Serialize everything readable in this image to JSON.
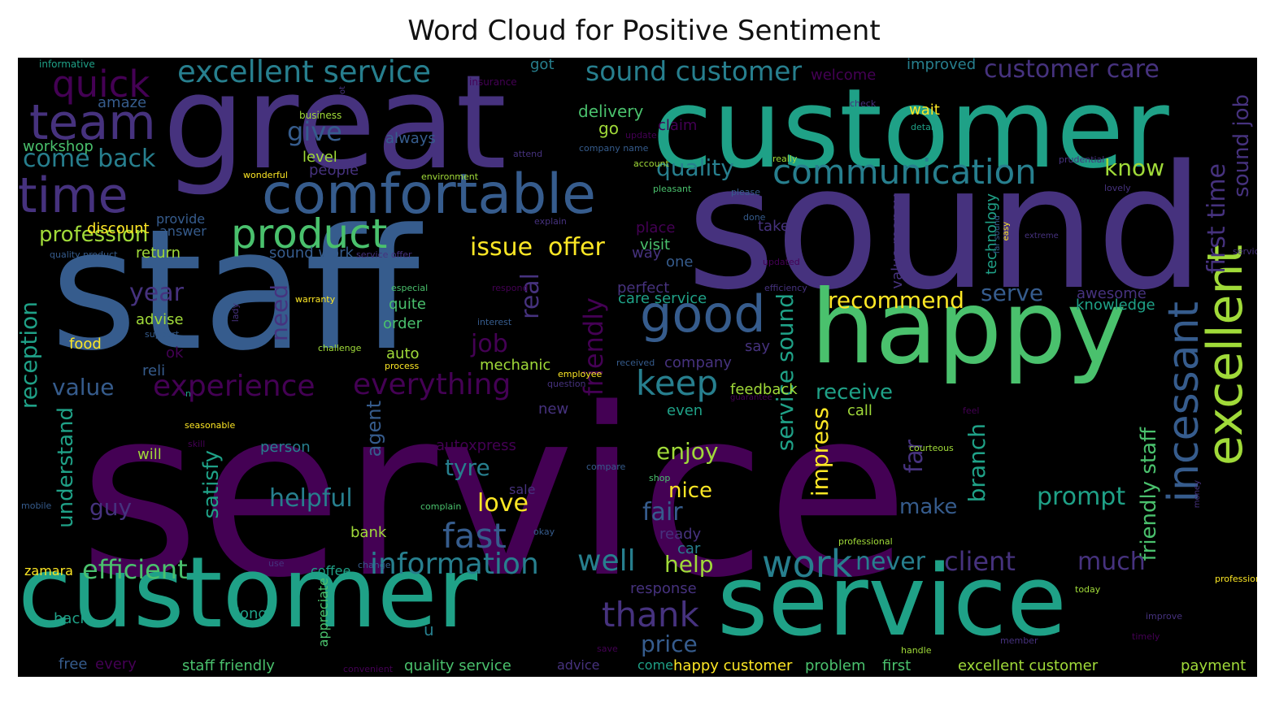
{
  "title": "Word Cloud for Positive Sentiment",
  "palette": {
    "purple": "#440154",
    "indigo": "#46327e",
    "slate": "#365c8d",
    "blue": "#277f8e",
    "teal": "#1fa187",
    "green": "#4ac16d",
    "lime": "#a0da39",
    "yellow": "#fde725"
  },
  "words": [
    {
      "text": "service",
      "color": "purple"
    },
    {
      "text": "staff",
      "color": "slate"
    },
    {
      "text": "sound",
      "color": "indigo"
    },
    {
      "text": "great",
      "color": "indigo"
    },
    {
      "text": "customer",
      "color": "teal"
    },
    {
      "text": "customer",
      "color": "teal"
    },
    {
      "text": "service",
      "color": "teal"
    },
    {
      "text": "happy",
      "color": "green"
    },
    {
      "text": "comfortable",
      "color": "slate"
    },
    {
      "text": "good",
      "color": "slate"
    },
    {
      "text": "time",
      "color": "indigo"
    },
    {
      "text": "team",
      "color": "indigo"
    },
    {
      "text": "quick",
      "color": "purple"
    },
    {
      "text": "excellent service",
      "color": "blue"
    },
    {
      "text": "sound customer",
      "color": "blue"
    },
    {
      "text": "customer care",
      "color": "indigo"
    },
    {
      "text": "communication",
      "color": "blue"
    },
    {
      "text": "product",
      "color": "green"
    },
    {
      "text": "excellent",
      "color": "lime"
    },
    {
      "text": "incessant",
      "color": "slate"
    },
    {
      "text": "first time",
      "color": "indigo"
    },
    {
      "text": "sound job",
      "color": "indigo"
    },
    {
      "text": "friendly staff",
      "color": "green"
    },
    {
      "text": "information",
      "color": "blue"
    },
    {
      "text": "experience",
      "color": "purple"
    },
    {
      "text": "everything",
      "color": "purple"
    },
    {
      "text": "keep",
      "color": "blue"
    },
    {
      "text": "work",
      "color": "blue"
    },
    {
      "text": "well",
      "color": "blue"
    },
    {
      "text": "fast",
      "color": "slate"
    },
    {
      "text": "thank",
      "color": "indigo"
    },
    {
      "text": "client",
      "color": "indigo"
    },
    {
      "text": "much",
      "color": "indigo"
    },
    {
      "text": "never",
      "color": "blue"
    },
    {
      "text": "efficient",
      "color": "green"
    },
    {
      "text": "helpful",
      "color": "blue"
    },
    {
      "text": "come back",
      "color": "blue"
    },
    {
      "text": "profession",
      "color": "lime"
    },
    {
      "text": "quality",
      "color": "blue"
    },
    {
      "text": "know",
      "color": "lime"
    },
    {
      "text": "give",
      "color": "slate"
    },
    {
      "text": "issue",
      "color": "yellow"
    },
    {
      "text": "offer",
      "color": "yellow"
    },
    {
      "text": "recommend",
      "color": "yellow"
    },
    {
      "text": "serve",
      "color": "slate"
    },
    {
      "text": "receive",
      "color": "teal"
    },
    {
      "text": "year",
      "color": "indigo"
    },
    {
      "text": "job",
      "color": "purple"
    },
    {
      "text": "real",
      "color": "indigo"
    },
    {
      "text": "friendly",
      "color": "purple"
    },
    {
      "text": "service sound",
      "color": "teal"
    },
    {
      "text": "impress",
      "color": "yellow"
    },
    {
      "text": "reception",
      "color": "teal"
    },
    {
      "text": "understand",
      "color": "teal"
    },
    {
      "text": "value",
      "color": "slate"
    },
    {
      "text": "enjoy",
      "color": "lime"
    },
    {
      "text": "tyre",
      "color": "blue"
    },
    {
      "text": "love",
      "color": "yellow"
    },
    {
      "text": "nice",
      "color": "yellow"
    },
    {
      "text": "fair",
      "color": "slate"
    },
    {
      "text": "guy",
      "color": "indigo"
    },
    {
      "text": "satisfy",
      "color": "teal"
    },
    {
      "text": "agent",
      "color": "slate"
    },
    {
      "text": "make",
      "color": "slate"
    },
    {
      "text": "prompt",
      "color": "teal"
    },
    {
      "text": "branch",
      "color": "teal"
    },
    {
      "text": "far",
      "color": "indigo"
    },
    {
      "text": "help",
      "color": "lime"
    },
    {
      "text": "price",
      "color": "slate"
    },
    {
      "text": "need",
      "color": "indigo"
    },
    {
      "text": "advise",
      "color": "lime"
    },
    {
      "text": "food",
      "color": "yellow"
    },
    {
      "text": "auto",
      "color": "lime"
    },
    {
      "text": "mechanic",
      "color": "lime"
    },
    {
      "text": "discount",
      "color": "yellow"
    },
    {
      "text": "workshop",
      "color": "green"
    },
    {
      "text": "provide",
      "color": "slate"
    },
    {
      "text": "answer",
      "color": "slate"
    },
    {
      "text": "return",
      "color": "lime"
    },
    {
      "text": "sound work",
      "color": "slate"
    },
    {
      "text": "quite",
      "color": "green"
    },
    {
      "text": "order",
      "color": "green"
    },
    {
      "text": "delivery",
      "color": "green"
    },
    {
      "text": "always",
      "color": "slate"
    },
    {
      "text": "level",
      "color": "lime"
    },
    {
      "text": "people",
      "color": "indigo"
    },
    {
      "text": "amaze",
      "color": "slate"
    },
    {
      "text": "got",
      "color": "blue"
    },
    {
      "text": "go",
      "color": "lime"
    },
    {
      "text": "improved",
      "color": "blue"
    },
    {
      "text": "wait",
      "color": "yellow"
    },
    {
      "text": "claim",
      "color": "purple"
    },
    {
      "text": "welcome",
      "color": "purple"
    },
    {
      "text": "visit",
      "color": "green"
    },
    {
      "text": "place",
      "color": "purple"
    },
    {
      "text": "take",
      "color": "indigo"
    },
    {
      "text": "one",
      "color": "slate"
    },
    {
      "text": "way",
      "color": "indigo"
    },
    {
      "text": "perfect",
      "color": "indigo"
    },
    {
      "text": "care service",
      "color": "teal"
    },
    {
      "text": "company",
      "color": "indigo"
    },
    {
      "text": "say",
      "color": "indigo"
    },
    {
      "text": "knowledge",
      "color": "teal"
    },
    {
      "text": "awesome",
      "color": "indigo"
    },
    {
      "text": "value money",
      "color": "indigo"
    },
    {
      "text": "technology",
      "color": "teal"
    },
    {
      "text": "feedback",
      "color": "lime"
    },
    {
      "text": "call",
      "color": "lime"
    },
    {
      "text": "even",
      "color": "teal"
    },
    {
      "text": "new",
      "color": "indigo"
    },
    {
      "text": "autoxpress",
      "color": "purple"
    },
    {
      "text": "person",
      "color": "blue"
    },
    {
      "text": "will",
      "color": "lime"
    },
    {
      "text": "reli",
      "color": "slate"
    },
    {
      "text": "ok",
      "color": "purple"
    },
    {
      "text": "bank",
      "color": "lime"
    },
    {
      "text": "sale",
      "color": "indigo"
    },
    {
      "text": "ready",
      "color": "indigo"
    },
    {
      "text": "car",
      "color": "blue"
    },
    {
      "text": "coffee",
      "color": "teal"
    },
    {
      "text": "long",
      "color": "teal"
    },
    {
      "text": "back",
      "color": "teal"
    },
    {
      "text": "zamara",
      "color": "yellow"
    },
    {
      "text": "appreciate",
      "color": "green"
    },
    {
      "text": "response",
      "color": "indigo"
    },
    {
      "text": "free",
      "color": "slate"
    },
    {
      "text": "every",
      "color": "purple"
    },
    {
      "text": "staff friendly",
      "color": "green"
    },
    {
      "text": "quality service",
      "color": "green"
    },
    {
      "text": "advice",
      "color": "indigo"
    },
    {
      "text": "come",
      "color": "teal"
    },
    {
      "text": "happy customer",
      "color": "yellow"
    },
    {
      "text": "problem",
      "color": "green"
    },
    {
      "text": "first",
      "color": "green"
    },
    {
      "text": "excellent customer",
      "color": "lime"
    },
    {
      "text": "payment",
      "color": "lime"
    },
    {
      "text": "informative",
      "color": "teal"
    },
    {
      "text": "insurance",
      "color": "purple"
    },
    {
      "text": "business",
      "color": "lime"
    },
    {
      "text": "lot",
      "color": "indigo"
    },
    {
      "text": "check",
      "color": "indigo"
    },
    {
      "text": "detail",
      "color": "teal"
    },
    {
      "text": "update",
      "color": "purple"
    },
    {
      "text": "company name",
      "color": "slate"
    },
    {
      "text": "attend",
      "color": "indigo"
    },
    {
      "text": "account",
      "color": "lime"
    },
    {
      "text": "really",
      "color": "lime"
    },
    {
      "text": "prudential",
      "color": "indigo"
    },
    {
      "text": "environment",
      "color": "lime"
    },
    {
      "text": "wonderful",
      "color": "yellow"
    },
    {
      "text": "pleasant",
      "color": "green"
    },
    {
      "text": "please",
      "color": "slate"
    },
    {
      "text": "lovely",
      "color": "indigo"
    },
    {
      "text": "explain",
      "color": "indigo"
    },
    {
      "text": "done",
      "color": "slate"
    },
    {
      "text": "far sound",
      "color": "slate"
    },
    {
      "text": "extreme",
      "color": "indigo"
    },
    {
      "text": "easy",
      "color": "yellow"
    },
    {
      "text": "updated",
      "color": "purple"
    },
    {
      "text": "efficiency",
      "color": "indigo"
    },
    {
      "text": "especial",
      "color": "green"
    },
    {
      "text": "respond",
      "color": "purple"
    },
    {
      "text": "warranty",
      "color": "yellow"
    },
    {
      "text": "interest",
      "color": "slate"
    },
    {
      "text": "support",
      "color": "slate"
    },
    {
      "text": "lady",
      "color": "indigo"
    },
    {
      "text": "challenge",
      "color": "lime"
    },
    {
      "text": "process",
      "color": "yellow"
    },
    {
      "text": "employee",
      "color": "yellow"
    },
    {
      "text": "received",
      "color": "slate"
    },
    {
      "text": "question",
      "color": "indigo"
    },
    {
      "text": "guarantee",
      "color": "purple"
    },
    {
      "text": "feel",
      "color": "purple"
    },
    {
      "text": "seasonable",
      "color": "yellow"
    },
    {
      "text": "skill",
      "color": "purple"
    },
    {
      "text": "courteous",
      "color": "lime"
    },
    {
      "text": "compare",
      "color": "slate"
    },
    {
      "text": "shop",
      "color": "green"
    },
    {
      "text": "complain",
      "color": "green"
    },
    {
      "text": "okay",
      "color": "slate"
    },
    {
      "text": "professional",
      "color": "lime"
    },
    {
      "text": "mobile",
      "color": "slate"
    },
    {
      "text": "use",
      "color": "indigo"
    },
    {
      "text": "change",
      "color": "slate"
    },
    {
      "text": "convenient",
      "color": "purple"
    },
    {
      "text": "save",
      "color": "purple"
    },
    {
      "text": "handle",
      "color": "lime"
    },
    {
      "text": "member",
      "color": "indigo"
    },
    {
      "text": "timely",
      "color": "purple"
    },
    {
      "text": "improve",
      "color": "indigo"
    },
    {
      "text": "today",
      "color": "lime"
    },
    {
      "text": "professionalism",
      "color": "yellow"
    },
    {
      "text": "money",
      "color": "indigo"
    },
    {
      "text": "service delivery",
      "color": "indigo"
    },
    {
      "text": "quality product",
      "color": "slate"
    },
    {
      "text": "service offer",
      "color": "indigo"
    },
    {
      "text": "n",
      "color": "teal"
    },
    {
      "text": "u",
      "color": "blue"
    }
  ]
}
